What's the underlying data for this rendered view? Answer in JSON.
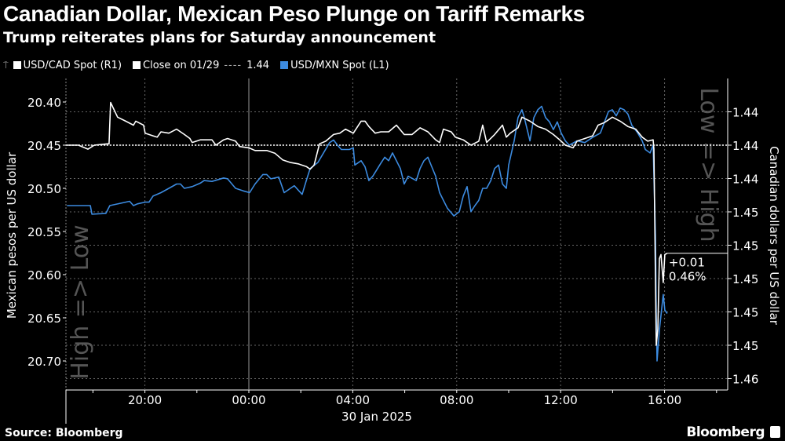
{
  "header": {
    "title": "Canadian Dollar, Mexican Peso Plunge on Tariff Remarks",
    "subtitle": "Trump reiterates plans for Saturday announcement"
  },
  "legend": {
    "cad": "USD/CAD Spot (R1)",
    "close": "Close on 01/29",
    "close_value": "1.44",
    "mxn": "USD/MXN Spot (L1)"
  },
  "footer": {
    "source": "Source: Bloomberg",
    "brand": "Bloomberg"
  },
  "colors": {
    "cad": "#ffffff",
    "mxn": "#3c8be0",
    "background": "#000000"
  },
  "chart_data": {
    "type": "line",
    "title": "Canadian Dollar, Mexican Peso Plunge on Tariff Remarks",
    "subtitle": "Trump reiterates plans for Saturday announcement",
    "x_unit": "hours relative to 00:00, 30 Jan 2025",
    "xlim": [
      -7.0,
      18.4
    ],
    "x_ticks": [
      -4,
      0,
      4,
      8,
      12,
      16
    ],
    "x_tick_labels": [
      "20:00",
      "00:00",
      "04:00",
      "08:00",
      "12:00",
      "16:00"
    ],
    "xlabel": "30 Jan 2025",
    "y_left": {
      "label": "Mexican pesos per US dollar",
      "inverted": true,
      "ticks": [
        20.4,
        20.45,
        20.5,
        20.55,
        20.6,
        20.65,
        20.7
      ],
      "tick_labels": [
        "20.40",
        "20.45",
        "20.50",
        "20.55",
        "20.60",
        "20.65",
        "20.70"
      ],
      "direction_note": "High => Low"
    },
    "y_right": {
      "label": "Canadian dollars per US dollar",
      "ticks": [
        1.4375,
        1.44,
        1.4425,
        1.445,
        1.4475,
        1.45,
        1.4525,
        1.455,
        1.4575
      ],
      "tick_labels": [
        "1.44",
        "1.44",
        "1.44",
        "1.45",
        "1.45",
        "1.45",
        "1.45",
        "1.45",
        "1.46"
      ],
      "direction_note": "Low => High"
    },
    "reference_line": {
      "name": "Close on 01/29",
      "value": 1.44,
      "axis": "right"
    },
    "annotation": {
      "change": "+0.01",
      "pct": "0.46%"
    },
    "series": [
      {
        "name": "USD/CAD Spot (R1)",
        "axis": "right",
        "points": [
          [
            -7.0,
            1.44
          ],
          [
            -6.56,
            1.44
          ],
          [
            -6.19,
            1.4403
          ],
          [
            -5.95,
            1.44
          ],
          [
            -5.44,
            1.4399
          ],
          [
            -5.38,
            1.4399
          ],
          [
            -5.32,
            1.4368
          ],
          [
            -5.05,
            1.4379
          ],
          [
            -4.74,
            1.4382
          ],
          [
            -4.44,
            1.4385
          ],
          [
            -4.35,
            1.4382
          ],
          [
            -4.05,
            1.4385
          ],
          [
            -3.99,
            1.4391
          ],
          [
            -3.69,
            1.4393
          ],
          [
            -3.53,
            1.4394
          ],
          [
            -3.38,
            1.439
          ],
          [
            -3.08,
            1.4391
          ],
          [
            -2.78,
            1.4388
          ],
          [
            -2.48,
            1.4392
          ],
          [
            -2.27,
            1.4395
          ],
          [
            -2.18,
            1.4398
          ],
          [
            -1.87,
            1.4396
          ],
          [
            -1.42,
            1.4396
          ],
          [
            -1.27,
            1.44
          ],
          [
            -0.97,
            1.4396
          ],
          [
            -0.82,
            1.4395
          ],
          [
            -0.51,
            1.4397
          ],
          [
            -0.36,
            1.4401
          ],
          [
            0,
            1.4402
          ],
          [
            0.24,
            1.4404
          ],
          [
            0.69,
            1.4404
          ],
          [
            1.0,
            1.4406
          ],
          [
            1.3,
            1.4411
          ],
          [
            1.6,
            1.4413
          ],
          [
            1.9,
            1.4414
          ],
          [
            2.21,
            1.4416
          ],
          [
            2.36,
            1.4418
          ],
          [
            2.51,
            1.4415
          ],
          [
            2.72,
            1.4399
          ],
          [
            2.96,
            1.4397
          ],
          [
            3.26,
            1.4392
          ],
          [
            3.5,
            1.4391
          ],
          [
            3.72,
            1.4388
          ],
          [
            4.02,
            1.4391
          ],
          [
            4.32,
            1.4382
          ],
          [
            4.47,
            1.4382
          ],
          [
            4.62,
            1.4386
          ],
          [
            4.86,
            1.4391
          ],
          [
            5.08,
            1.439
          ],
          [
            5.38,
            1.439
          ],
          [
            5.68,
            1.4385
          ],
          [
            5.98,
            1.4392
          ],
          [
            6.28,
            1.4392
          ],
          [
            6.59,
            1.4387
          ],
          [
            6.89,
            1.439
          ],
          [
            7.19,
            1.4396
          ],
          [
            7.34,
            1.4398
          ],
          [
            7.49,
            1.4388
          ],
          [
            7.79,
            1.439
          ],
          [
            7.95,
            1.4394
          ],
          [
            8.25,
            1.4396
          ],
          [
            8.55,
            1.44
          ],
          [
            8.85,
            1.4397
          ],
          [
            9.0,
            1.4385
          ],
          [
            9.15,
            1.4398
          ],
          [
            9.46,
            1.4392
          ],
          [
            9.76,
            1.4385
          ],
          [
            9.91,
            1.4394
          ],
          [
            10.06,
            1.4391
          ],
          [
            10.36,
            1.4387
          ],
          [
            10.51,
            1.4379
          ],
          [
            10.82,
            1.4382
          ],
          [
            11.12,
            1.4386
          ],
          [
            11.42,
            1.4388
          ],
          [
            11.72,
            1.4392
          ],
          [
            12.02,
            1.4397
          ],
          [
            12.18,
            1.44
          ],
          [
            12.48,
            1.4402
          ],
          [
            12.63,
            1.4397
          ],
          [
            12.93,
            1.4395
          ],
          [
            13.23,
            1.4393
          ],
          [
            13.44,
            1.4385
          ],
          [
            13.69,
            1.4383
          ],
          [
            13.99,
            1.4379
          ],
          [
            14.29,
            1.4382
          ],
          [
            14.59,
            1.4386
          ],
          [
            14.89,
            1.4388
          ],
          [
            15.14,
            1.4394
          ],
          [
            15.35,
            1.4397
          ],
          [
            15.56,
            1.4396
          ],
          [
            15.59,
            1.4403
          ],
          [
            15.68,
            1.455
          ],
          [
            15.74,
            1.4538
          ],
          [
            15.8,
            1.4485
          ],
          [
            15.86,
            1.4482
          ],
          [
            15.95,
            1.4503
          ],
          [
            16.01,
            1.4482
          ],
          [
            16.1,
            1.4481
          ]
        ]
      },
      {
        "name": "USD/MXN Spot (L1)",
        "axis": "left",
        "points": [
          [
            -7.0,
            20.52
          ],
          [
            -6.1,
            20.52
          ],
          [
            -6.04,
            20.53
          ],
          [
            -5.5,
            20.529
          ],
          [
            -5.35,
            20.52
          ],
          [
            -4.74,
            20.516
          ],
          [
            -4.59,
            20.515
          ],
          [
            -4.44,
            20.52
          ],
          [
            -4.29,
            20.518
          ],
          [
            -3.99,
            20.516
          ],
          [
            -3.84,
            20.516
          ],
          [
            -3.69,
            20.509
          ],
          [
            -3.38,
            20.505
          ],
          [
            -3.08,
            20.5
          ],
          [
            -2.78,
            20.495
          ],
          [
            -2.63,
            20.495
          ],
          [
            -2.48,
            20.5
          ],
          [
            -2.18,
            20.498
          ],
          [
            -1.87,
            20.494
          ],
          [
            -1.72,
            20.491
          ],
          [
            -1.42,
            20.492
          ],
          [
            -0.97,
            20.488
          ],
          [
            -0.82,
            20.489
          ],
          [
            -0.51,
            20.5
          ],
          [
            -0.21,
            20.503
          ],
          [
            0.03,
            20.505
          ],
          [
            0.24,
            20.495
          ],
          [
            0.54,
            20.484
          ],
          [
            0.69,
            20.484
          ],
          [
            0.85,
            20.489
          ],
          [
            1.15,
            20.487
          ],
          [
            1.36,
            20.505
          ],
          [
            1.6,
            20.5
          ],
          [
            1.75,
            20.497
          ],
          [
            2.05,
            20.507
          ],
          [
            2.21,
            20.491
          ],
          [
            2.36,
            20.477
          ],
          [
            2.66,
            20.47
          ],
          [
            3.11,
            20.447
          ],
          [
            3.26,
            20.444
          ],
          [
            3.41,
            20.45
          ],
          [
            3.56,
            20.455
          ],
          [
            3.87,
            20.455
          ],
          [
            4.02,
            20.453
          ],
          [
            4.08,
            20.473
          ],
          [
            4.32,
            20.468
          ],
          [
            4.47,
            20.475
          ],
          [
            4.62,
            20.491
          ],
          [
            4.77,
            20.486
          ],
          [
            5.08,
            20.471
          ],
          [
            5.23,
            20.464
          ],
          [
            5.38,
            20.468
          ],
          [
            5.53,
            20.459
          ],
          [
            5.83,
            20.477
          ],
          [
            5.98,
            20.495
          ],
          [
            6.13,
            20.486
          ],
          [
            6.44,
            20.491
          ],
          [
            6.59,
            20.477
          ],
          [
            6.74,
            20.468
          ],
          [
            6.89,
            20.464
          ],
          [
            7.04,
            20.475
          ],
          [
            7.19,
            20.486
          ],
          [
            7.34,
            20.505
          ],
          [
            7.49,
            20.514
          ],
          [
            7.64,
            20.523
          ],
          [
            7.89,
            20.532
          ],
          [
            8.1,
            20.527
          ],
          [
            8.25,
            20.509
          ],
          [
            8.4,
            20.498
          ],
          [
            8.55,
            20.527
          ],
          [
            8.7,
            20.52
          ],
          [
            8.85,
            20.514
          ],
          [
            9.0,
            20.5
          ],
          [
            9.15,
            20.5
          ],
          [
            9.31,
            20.491
          ],
          [
            9.46,
            20.477
          ],
          [
            9.61,
            20.473
          ],
          [
            9.76,
            20.495
          ],
          [
            9.91,
            20.5
          ],
          [
            10.0,
            20.473
          ],
          [
            10.21,
            20.445
          ],
          [
            10.36,
            20.418
          ],
          [
            10.51,
            20.409
          ],
          [
            10.6,
            20.418
          ],
          [
            10.82,
            20.445
          ],
          [
            10.97,
            20.418
          ],
          [
            11.12,
            20.409
          ],
          [
            11.27,
            20.405
          ],
          [
            11.42,
            20.418
          ],
          [
            11.57,
            20.423
          ],
          [
            11.72,
            20.432
          ],
          [
            11.87,
            20.423
          ],
          [
            12.02,
            20.436
          ],
          [
            12.18,
            20.445
          ],
          [
            12.33,
            20.45
          ],
          [
            12.63,
            20.445
          ],
          [
            12.93,
            20.447
          ],
          [
            13.23,
            20.441
          ],
          [
            13.53,
            20.436
          ],
          [
            13.84,
            20.411
          ],
          [
            13.99,
            20.409
          ],
          [
            14.14,
            20.416
          ],
          [
            14.29,
            20.407
          ],
          [
            14.44,
            20.409
          ],
          [
            14.59,
            20.414
          ],
          [
            14.74,
            20.427
          ],
          [
            14.95,
            20.435
          ],
          [
            15.14,
            20.445
          ],
          [
            15.26,
            20.455
          ],
          [
            15.44,
            20.459
          ],
          [
            15.56,
            20.45
          ],
          [
            15.65,
            20.555
          ],
          [
            15.68,
            20.645
          ],
          [
            15.71,
            20.7
          ],
          [
            15.8,
            20.664
          ],
          [
            15.95,
            20.623
          ],
          [
            16.01,
            20.641
          ],
          [
            16.1,
            20.645
          ]
        ]
      }
    ]
  }
}
